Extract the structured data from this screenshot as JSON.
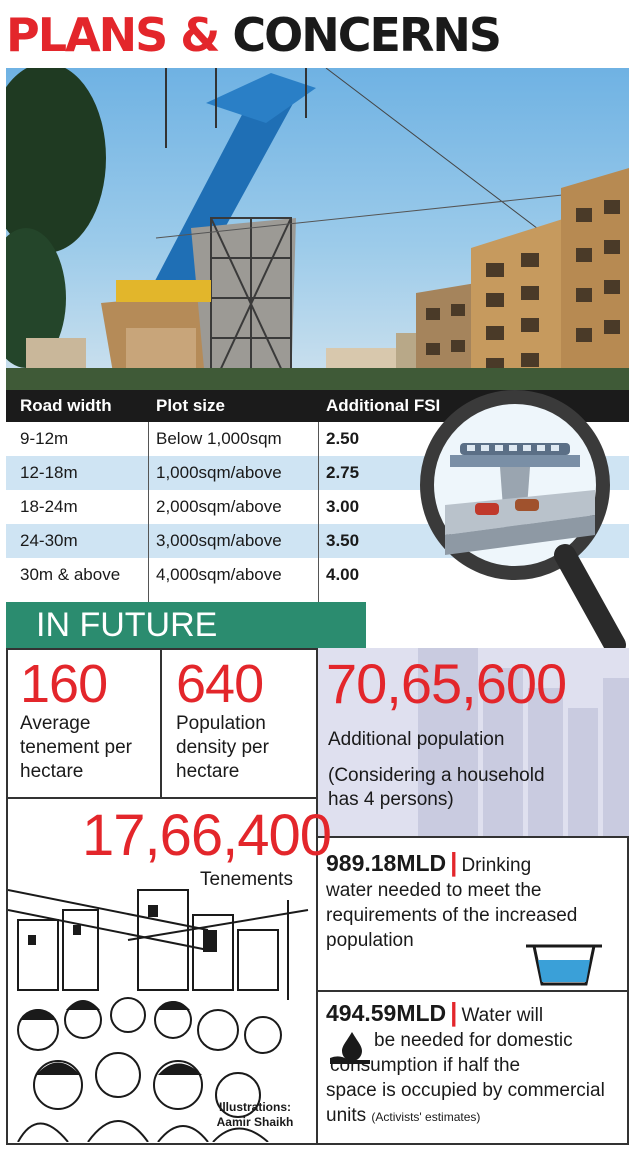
{
  "title": {
    "part1": "PLANS &",
    "part2": "CONCERNS"
  },
  "table": {
    "headers": [
      "Road width",
      "Plot size",
      "Additional FSI"
    ],
    "rows": [
      [
        "9-12m",
        "Below 1,000sqm",
        "2.50"
      ],
      [
        "12-18m",
        "1,000sqm/above",
        "2.75"
      ],
      [
        "18-24m",
        "2,000sqm/above",
        "3.00"
      ],
      [
        "24-30m",
        "3,000sqm/above",
        "3.50"
      ],
      [
        "30m & above",
        "4,000sqm/above",
        "4.00"
      ]
    ]
  },
  "future": {
    "heading": "IN FUTURE",
    "stat1": {
      "value": "160",
      "label_lines": [
        "Average",
        "tenement per",
        "hectare"
      ]
    },
    "stat2": {
      "value": "640",
      "label_lines": [
        "Population",
        "density per",
        "hectare"
      ]
    },
    "stat3": {
      "value": "70,65,600",
      "label": "Additional population",
      "note_lines": [
        "(Considering a household",
        "has 4 persons)"
      ]
    },
    "stat4": {
      "value": "17,66,400",
      "label": "Tenements"
    }
  },
  "water": {
    "item1": {
      "value": "989.18MLD",
      "sep": "|",
      "text_first": "Drinking",
      "text_lines": [
        "water needed to meet the",
        "requirements of the increased",
        "population"
      ]
    },
    "item2": {
      "value": "494.59MLD",
      "sep": "|",
      "text_first": "Water will",
      "text_lines": [
        "be needed for domestic",
        "consumption if half the",
        "space is occupied by commercial"
      ],
      "last_line": "units",
      "note": "(Activists' estimates)"
    }
  },
  "credit": {
    "line1": "Illustrations:",
    "line2": "Aamir Shaikh"
  },
  "colors": {
    "accent_red": "#e3262b",
    "banner_green": "#2b8c6f",
    "table_alt": "#cfe4f3",
    "header_dark": "#1b1b1b"
  }
}
